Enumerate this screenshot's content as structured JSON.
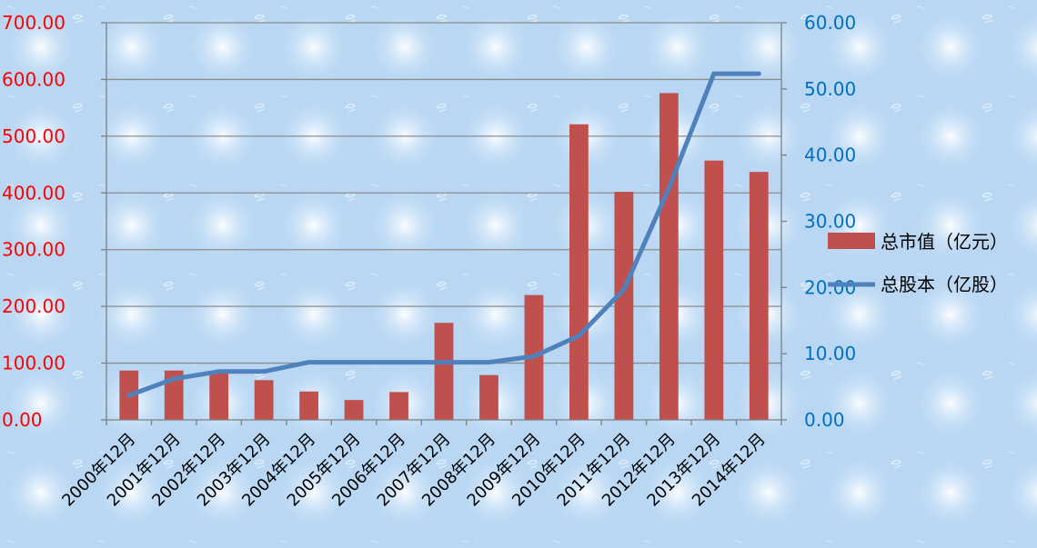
{
  "chart_data": {
    "type": "bar",
    "categories": [
      "2000年12月",
      "2001年12月",
      "2002年12月",
      "2003年12月",
      "2004年12月",
      "2005年12月",
      "2006年12月",
      "2007年12月",
      "2008年12月",
      "2009年12月",
      "2010年12月",
      "2011年12月",
      "2012年12月",
      "2013年12月",
      "2014年12月"
    ],
    "series": [
      {
        "name": "总市值（亿元）",
        "type": "bar",
        "axis": "left",
        "values": [
          87,
          87,
          83,
          70,
          50,
          35,
          49,
          171,
          79,
          220,
          521,
          402,
          576,
          457,
          437
        ]
      },
      {
        "name": "总股本（亿股）",
        "type": "line",
        "axis": "right",
        "values": [
          3.7,
          6.2,
          7.3,
          7.3,
          8.7,
          8.7,
          8.7,
          8.7,
          8.7,
          9.6,
          12.7,
          19.7,
          35.0,
          52.3,
          52.3
        ]
      }
    ],
    "y_left": {
      "range": [
        0,
        700
      ],
      "ticks": [
        "0.00",
        "100.00",
        "200.00",
        "300.00",
        "400.00",
        "500.00",
        "600.00",
        "700.00"
      ]
    },
    "y_right": {
      "range": [
        0,
        60
      ],
      "ticks": [
        "0.00",
        "10.00",
        "20.00",
        "30.00",
        "40.00",
        "50.00",
        "60.00"
      ]
    },
    "grid": true,
    "legend": "right",
    "colors": {
      "bar": "#c0504d",
      "line": "#4f81bd",
      "left_axis_text": "#ff0000",
      "right_axis_text": "#0070c0",
      "background": "#b9d7f3"
    }
  }
}
